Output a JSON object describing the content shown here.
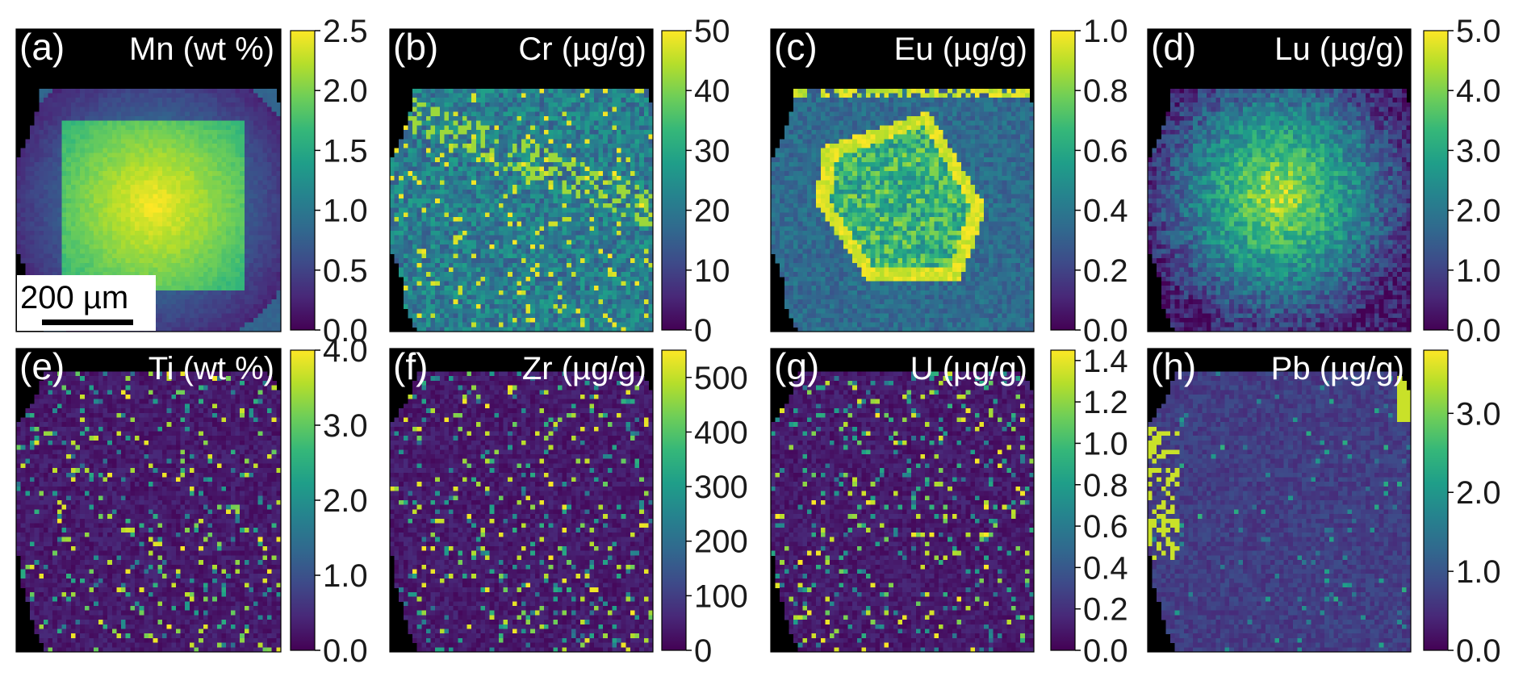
{
  "colormap": "viridis",
  "colors": {
    "background": "#ffffff",
    "outside_crystal": "#000000",
    "viridis": [
      "#440154",
      "#482878",
      "#3e4a89",
      "#31688e",
      "#26828e",
      "#1f9e89",
      "#35b779",
      "#6ece58",
      "#b5de2b",
      "#fde725"
    ]
  },
  "scale_bar": {
    "label": "200 µm"
  },
  "chart_data": [
    {
      "type": "heatmap",
      "panel": "(a)",
      "title": "Mn (wt %)",
      "colorbar": {
        "min": 0.0,
        "max": 2.5,
        "ticks": [
          "0.0",
          "0.5",
          "1.0",
          "1.5",
          "2.0",
          "2.5"
        ]
      },
      "pattern": "concentric-core"
    },
    {
      "type": "heatmap",
      "panel": "(b)",
      "title": "Cr (µg/g)",
      "colorbar": {
        "min": 0,
        "max": 50,
        "ticks": [
          "0",
          "10",
          "20",
          "30",
          "40",
          "50"
        ]
      },
      "pattern": "speckled-field"
    },
    {
      "type": "heatmap",
      "panel": "(c)",
      "title": "Eu (µg/g)",
      "colorbar": {
        "min": 0.0,
        "max": 1.0,
        "ticks": [
          "0.0",
          "0.2",
          "0.4",
          "0.6",
          "0.8",
          "1.0"
        ]
      },
      "pattern": "hexagonal-zoning"
    },
    {
      "type": "heatmap",
      "panel": "(d)",
      "title": "Lu (µg/g)",
      "colorbar": {
        "min": 0.0,
        "max": 5.0,
        "ticks": [
          "0.0",
          "1.0",
          "2.0",
          "3.0",
          "4.0",
          "5.0"
        ]
      },
      "pattern": "diffuse-core"
    },
    {
      "type": "heatmap",
      "panel": "(e)",
      "title": "Ti (wt %)",
      "colorbar": {
        "min": 0.0,
        "max": 4.0,
        "ticks": [
          "0.0",
          "1.0",
          "2.0",
          "3.0",
          "4.0"
        ]
      },
      "pattern": "sparse-inclusions"
    },
    {
      "type": "heatmap",
      "panel": "(f)",
      "title": "Zr (µg/g)",
      "colorbar": {
        "min": 0,
        "max": 550,
        "ticks": [
          "0",
          "100",
          "200",
          "300",
          "400",
          "500"
        ]
      },
      "pattern": "sparse-inclusions"
    },
    {
      "type": "heatmap",
      "panel": "(g)",
      "title": "U (µg/g)",
      "colorbar": {
        "min": 0.0,
        "max": 1.45,
        "ticks": [
          "0.0",
          "0.2",
          "0.4",
          "0.6",
          "0.8",
          "1.0",
          "1.2",
          "1.4"
        ]
      },
      "pattern": "sparse-inclusions"
    },
    {
      "type": "heatmap",
      "panel": "(h)",
      "title": "Pb (µg/g)",
      "colorbar": {
        "min": 0.0,
        "max": 3.8,
        "ticks": [
          "0.0",
          "1.0",
          "2.0",
          "3.0"
        ]
      },
      "pattern": "low-with-edge-highs"
    }
  ]
}
